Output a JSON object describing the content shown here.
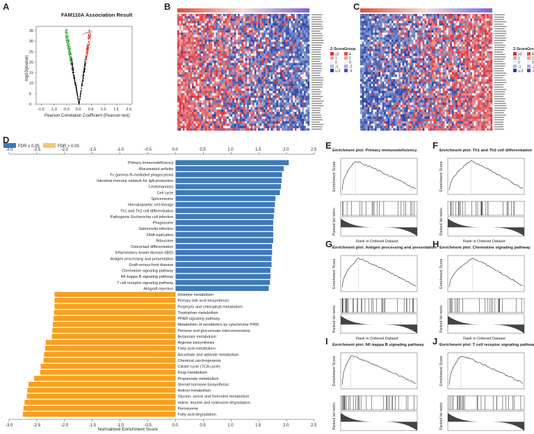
{
  "panel_letters": [
    "A",
    "B",
    "C",
    "D",
    "E",
    "F",
    "G",
    "H",
    "I",
    "J"
  ],
  "colors": {
    "red": "#e8423a",
    "blue": "#2d5aa8",
    "bar_blue": "#3d7ab8",
    "bar_orange": "#f5a11c",
    "volcano_red": "#e52b2b",
    "volcano_green": "#2ca02c"
  },
  "chart_data": [
    {
      "id": "A",
      "type": "scatter",
      "title": "FAM110A Association Result",
      "xlabel": "Pearson Correlation Coefficient (Pearson test)",
      "ylabel": "-log10(pvalue)",
      "xlim": [
        -1.7,
        2.1
      ],
      "ylim": [
        0,
        37
      ],
      "xticks": [
        "-1.5",
        "-1.0",
        "-0.5",
        "0.0",
        "0.5",
        "1.0",
        "1.5",
        "2.0"
      ],
      "xtick_values": [
        -1.5,
        -1.0,
        -0.5,
        0.0,
        0.5,
        1.0,
        1.5,
        2.0
      ],
      "yticks": [
        "0",
        "5",
        "10",
        "15",
        "20",
        "25",
        "30",
        "35"
      ],
      "ytick_values": [
        0,
        5,
        10,
        15,
        20,
        25,
        30,
        35
      ]
    },
    {
      "id": "B",
      "type": "heatmap",
      "description_rows": 50,
      "dominant": "red-left-blue-right",
      "legend": {
        "zscore_title": "Z-Score",
        "group_title": "Group",
        "zscore_labels": [
          "≥3",
          "1",
          "0",
          "-1",
          "≤-3"
        ],
        "group_labels": [
          "4",
          "2",
          "0",
          "-2",
          "-4"
        ]
      }
    },
    {
      "id": "C",
      "type": "heatmap",
      "description_rows": 50,
      "dominant": "blue-left-red-right",
      "legend": {
        "zscore_title": "Z-Score",
        "group_title": "Group",
        "zscore_labels": [
          "≥3",
          "1",
          "0",
          "-1",
          "≤-3"
        ],
        "group_labels": [
          "4",
          "2",
          "0",
          "-2",
          "-4"
        ]
      }
    },
    {
      "id": "D",
      "type": "bar",
      "orientation": "horizontal",
      "xlabel": "Normalized Enrichment Score",
      "xlim": [
        -3.0,
        2.5
      ],
      "ticks": [
        "-3.0",
        "-2.5",
        "-2.0",
        "-1.5",
        "-1.0",
        "-0.5",
        "0.0",
        "0.5",
        "1.0",
        "1.5",
        "2.0",
        "2.5"
      ],
      "tick_values": [
        -3.0,
        -2.5,
        -2.0,
        -1.5,
        -1.0,
        -0.5,
        0.0,
        0.5,
        1.0,
        1.5,
        2.0,
        2.5
      ],
      "legend": [
        "FDR ≤ 0.05",
        "FDR > 0.05"
      ],
      "categories": [
        "Primary immunodeficiency",
        "Rheumatoid arthritis",
        "Fc gamma R-mediated phagocytosis",
        "Intestinal immune network for IgA production",
        "Leishmaniasis",
        "Cell cycle",
        "Spliceosome",
        "Hematopoietic cell lineage",
        "Th1 and Th2 cell differentiation",
        "Pathogenic Escherichia coli infection",
        "Phagosome",
        "Salmonella infection",
        "DNA replication",
        "Ribosome",
        "Osteoclast differentiation",
        "Inflammatory bowel disease (IBD)",
        "Antigen processing and presentation",
        "Graft-versus-host disease",
        "Chemokine signaling pathway",
        "NF-kappa B signaling pathway",
        "T cell receptor signaling pathway",
        "Allograft rejection",
        "Histidine metabolism",
        "Primary bile acid biosynthesis",
        "Porphyrin and chlorophyll metabolism",
        "Tryptophan metabolism",
        "PPAR signaling pathway",
        "Metabolism of xenobiotics by cytochrome P450",
        "Pentose and glucuronate interconversions",
        "Butanoate metabolism",
        "Arginine biosynthesis",
        "Fatty acid metabolism",
        "Ascorbate and aldarate metabolism",
        "Chemical carcinogenesis",
        "Citrate cycle (TCA cycle)",
        "Drug metabolism",
        "Propanoate metabolism",
        "Steroid hormone biosynthesis",
        "Retinol metabolism",
        "Glycine, serine and threonine metabolism",
        "Valine, leucine and isoleucine degradation",
        "Peroxisome",
        "Fatty acid degradation"
      ],
      "values": [
        2.04,
        1.95,
        1.92,
        1.91,
        1.9,
        1.88,
        1.8,
        1.79,
        1.78,
        1.77,
        1.76,
        1.76,
        1.76,
        1.76,
        1.74,
        1.74,
        1.73,
        1.73,
        1.71,
        1.71,
        1.7,
        1.68,
        -2.18,
        -2.18,
        -2.18,
        -2.19,
        -2.2,
        -2.21,
        -2.22,
        -2.23,
        -2.34,
        -2.35,
        -2.37,
        -2.38,
        -2.43,
        -2.44,
        -2.55,
        -2.65,
        -2.67,
        -2.68,
        -2.72,
        -2.74,
        -2.75
      ]
    },
    {
      "id": "E",
      "type": "line",
      "title": "Enrichment plot: Primary immunodeficiency",
      "ylabel": "Enrichment Score",
      "ylabel2": "Ranked list metric",
      "xlabel": "Rank in Ordered Dataset"
    },
    {
      "id": "F",
      "type": "line",
      "title": "Enrichment plot: Th1 and Th2 cell differentiation",
      "ylabel": "Enrichment Score",
      "ylabel2": "Ranked list metric",
      "xlabel": "Rank in Ordered Dataset"
    },
    {
      "id": "G",
      "type": "line",
      "title": "Enrichment plot: Antigen processing and presentation",
      "ylabel": "Enrichment Score",
      "ylabel2": "Ranked list metric",
      "xlabel": "Rank in Ordered Dataset"
    },
    {
      "id": "H",
      "type": "line",
      "title": "Enrichment plot: Chemokine signaling pathway",
      "ylabel": "Enrichment Score",
      "ylabel2": "Ranked list metric",
      "xlabel": "Rank in Ordered Dataset"
    },
    {
      "id": "I",
      "type": "line",
      "title": "Enrichment plot: NF-kappa B signaling pathway",
      "ylabel": "Enrichment Score",
      "ylabel2": "Ranked list metric",
      "xlabel": "Rank in Ordered Dataset"
    },
    {
      "id": "J",
      "type": "line",
      "title": "Enrichment plot: T cell receptor signaling pathway",
      "ylabel": "Enrichment Score",
      "ylabel2": "Ranked list metric",
      "xlabel": "Rank in Ordered Dataset"
    }
  ]
}
